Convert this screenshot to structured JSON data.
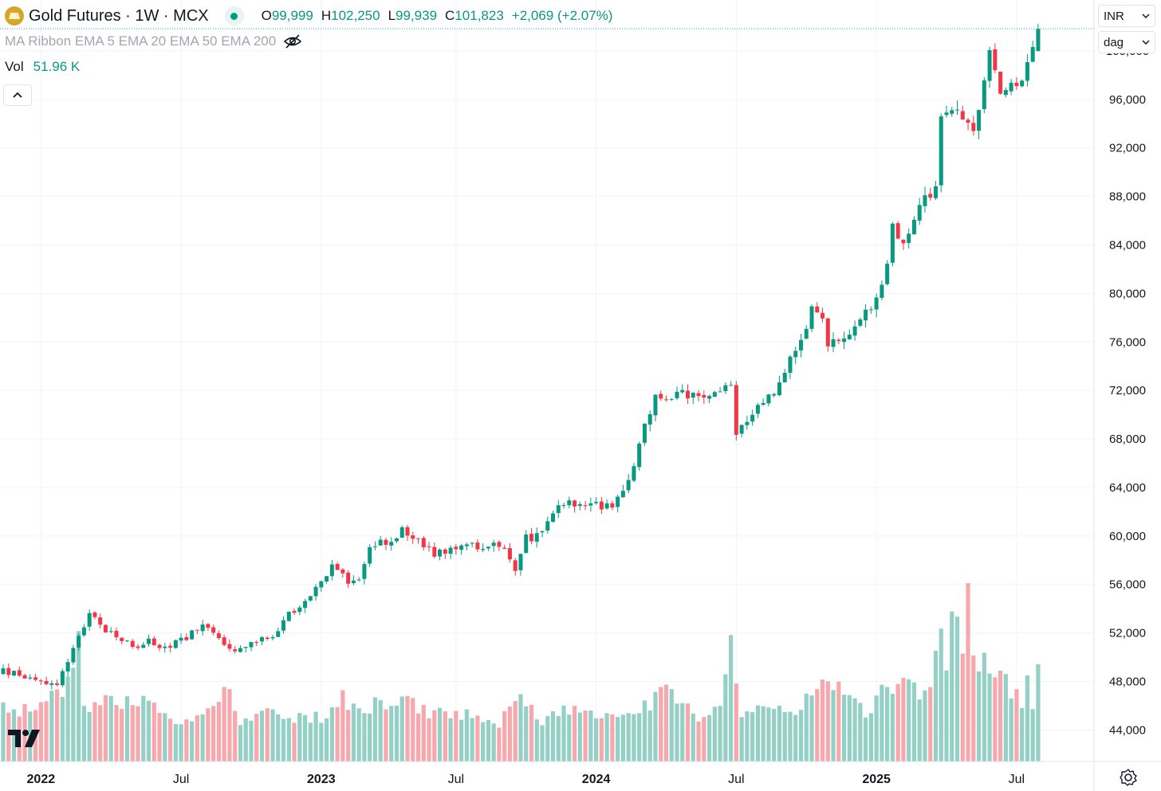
{
  "header": {
    "symbol": "Gold Futures",
    "interval": "1W",
    "exchange": "MCX",
    "title": "Gold Futures · 1W · MCX",
    "ohlc": {
      "o_label": "O",
      "o_value": "99,999",
      "h_label": "H",
      "h_value": "102,250",
      "l_label": "L",
      "l_value": "99,939",
      "c_label": "C",
      "c_value": "101,823",
      "change": "+2,069 (+2.07%)"
    },
    "ma_ribbon": "MA Ribbon EMA 5 EMA 20 EMA 50 EMA 200",
    "vol_label": "Vol",
    "vol_value": "51.96 K"
  },
  "right_panel": {
    "currency": "INR",
    "scale_mode": "dag"
  },
  "colors": {
    "up": "#089981",
    "down": "#f23645",
    "vol_up": "#94d0c6",
    "vol_down": "#f7a8ad",
    "grid": "#f0f3fa",
    "last_price_line": "#26a69a"
  },
  "chart_data": {
    "type": "candlestick",
    "title": "Gold Futures · 1W · MCX",
    "currency": "INR",
    "price_axis": {
      "ticks": [
        44000,
        48000,
        52000,
        56000,
        60000,
        64000,
        68000,
        72000,
        76000,
        80000,
        84000,
        88000,
        92000,
        96000,
        100000
      ],
      "tick_labels": [
        "44,000",
        "48,000",
        "52,000",
        "56,000",
        "60,000",
        "64,000",
        "68,000",
        "72,000",
        "76,000",
        "80,000",
        "84,000",
        "88,000",
        "92,000",
        "96,000",
        "100,000"
      ],
      "range": [
        41400,
        104200
      ]
    },
    "time_axis": {
      "labels": [
        {
          "text": "2022",
          "week": 7,
          "bold": true
        },
        {
          "text": "Jul",
          "week": 33,
          "bold": false
        },
        {
          "text": "2023",
          "week": 59,
          "bold": true
        },
        {
          "text": "Jul",
          "week": 84,
          "bold": false
        },
        {
          "text": "2024",
          "week": 110,
          "bold": true
        },
        {
          "text": "Jul",
          "week": 136,
          "bold": false
        },
        {
          "text": "2025",
          "week": 162,
          "bold": true
        },
        {
          "text": "Jul",
          "week": 188,
          "bold": false
        }
      ]
    },
    "close_anchors": [
      [
        0,
        48800
      ],
      [
        6,
        48300
      ],
      [
        10,
        47600
      ],
      [
        13,
        50500
      ],
      [
        16,
        53500
      ],
      [
        18,
        52600
      ],
      [
        21,
        51900
      ],
      [
        24,
        50700
      ],
      [
        27,
        51400
      ],
      [
        30,
        50900
      ],
      [
        33,
        51300
      ],
      [
        37,
        52600
      ],
      [
        40,
        51600
      ],
      [
        43,
        50200
      ],
      [
        46,
        51200
      ],
      [
        50,
        51600
      ],
      [
        53,
        53500
      ],
      [
        57,
        55200
      ],
      [
        61,
        57300
      ],
      [
        64,
        56200
      ],
      [
        66,
        56300
      ],
      [
        68,
        58800
      ],
      [
        71,
        59600
      ],
      [
        74,
        60400
      ],
      [
        76,
        59800
      ],
      [
        80,
        58600
      ],
      [
        83,
        58800
      ],
      [
        86,
        59400
      ],
      [
        89,
        59000
      ],
      [
        93,
        59200
      ],
      [
        95,
        57000
      ],
      [
        97,
        59800
      ],
      [
        100,
        60200
      ],
      [
        103,
        62800
      ],
      [
        106,
        62600
      ],
      [
        108,
        62700
      ],
      [
        111,
        62300
      ],
      [
        113,
        62700
      ],
      [
        117,
        65400
      ],
      [
        118,
        68000
      ],
      [
        121,
        71700
      ],
      [
        123,
        71000
      ],
      [
        126,
        71700
      ],
      [
        129,
        71500
      ],
      [
        132,
        71800
      ],
      [
        135,
        72900
      ],
      [
        136,
        68200
      ],
      [
        139,
        70200
      ],
      [
        142,
        71300
      ],
      [
        144,
        72500
      ],
      [
        146,
        74500
      ],
      [
        148,
        76000
      ],
      [
        150,
        78600
      ],
      [
        152,
        78300
      ],
      [
        153,
        75300
      ],
      [
        154,
        76600
      ],
      [
        156,
        76400
      ],
      [
        158,
        76800
      ],
      [
        161,
        79000
      ],
      [
        163,
        80500
      ],
      [
        165,
        85300
      ],
      [
        167,
        84400
      ],
      [
        169,
        86400
      ],
      [
        171,
        87800
      ],
      [
        173,
        88500
      ],
      [
        174,
        94500
      ],
      [
        177,
        95500
      ],
      [
        180,
        93500
      ],
      [
        182,
        97000
      ],
      [
        183,
        100200
      ],
      [
        185,
        96800
      ],
      [
        187,
        97800
      ],
      [
        189,
        97500
      ],
      [
        191,
        99754
      ],
      [
        192,
        101823
      ]
    ],
    "last_week": {
      "open": 99999,
      "high": 102250,
      "low": 99939,
      "close": 101823
    },
    "volume": {
      "unit": "thousand contracts",
      "last_value": 51.96,
      "range_k": [
        0,
        101
      ],
      "anchors": [
        [
          0,
          29
        ],
        [
          4,
          28
        ],
        [
          8,
          30
        ],
        [
          12,
          42
        ],
        [
          14,
          67
        ],
        [
          15,
          27
        ],
        [
          20,
          32
        ],
        [
          25,
          34
        ],
        [
          30,
          25
        ],
        [
          33,
          21
        ],
        [
          37,
          25
        ],
        [
          41,
          40
        ],
        [
          44,
          22
        ],
        [
          49,
          27
        ],
        [
          52,
          23
        ],
        [
          56,
          24
        ],
        [
          60,
          23
        ],
        [
          63,
          34
        ],
        [
          66,
          25
        ],
        [
          70,
          32
        ],
        [
          73,
          31
        ],
        [
          76,
          31
        ],
        [
          79,
          26
        ],
        [
          82,
          26
        ],
        [
          85,
          24
        ],
        [
          88,
          26
        ],
        [
          92,
          19
        ],
        [
          94,
          28
        ],
        [
          96,
          36
        ],
        [
          98,
          28
        ],
        [
          100,
          22
        ],
        [
          103,
          28
        ],
        [
          106,
          29
        ],
        [
          110,
          26
        ],
        [
          112,
          23
        ],
        [
          115,
          23
        ],
        [
          118,
          28
        ],
        [
          120,
          30
        ],
        [
          122,
          37
        ],
        [
          124,
          35
        ],
        [
          127,
          27
        ],
        [
          130,
          24
        ],
        [
          133,
          27
        ],
        [
          135,
          62
        ],
        [
          137,
          27
        ],
        [
          140,
          30
        ],
        [
          143,
          30
        ],
        [
          146,
          27
        ],
        [
          149,
          32
        ],
        [
          152,
          39
        ],
        [
          155,
          39
        ],
        [
          157,
          37
        ],
        [
          160,
          23
        ],
        [
          162,
          33
        ],
        [
          165,
          41
        ],
        [
          168,
          50
        ],
        [
          170,
          31
        ],
        [
          172,
          38
        ],
        [
          174,
          83
        ],
        [
          175,
          50
        ],
        [
          176,
          88
        ],
        [
          177,
          75
        ],
        [
          178,
          52
        ],
        [
          179,
          84
        ],
        [
          180,
          55
        ],
        [
          181,
          48
        ],
        [
          183,
          54
        ],
        [
          185,
          48
        ],
        [
          187,
          38
        ],
        [
          189,
          32
        ],
        [
          190,
          45
        ],
        [
          191,
          26
        ],
        [
          192,
          52
        ]
      ]
    }
  }
}
